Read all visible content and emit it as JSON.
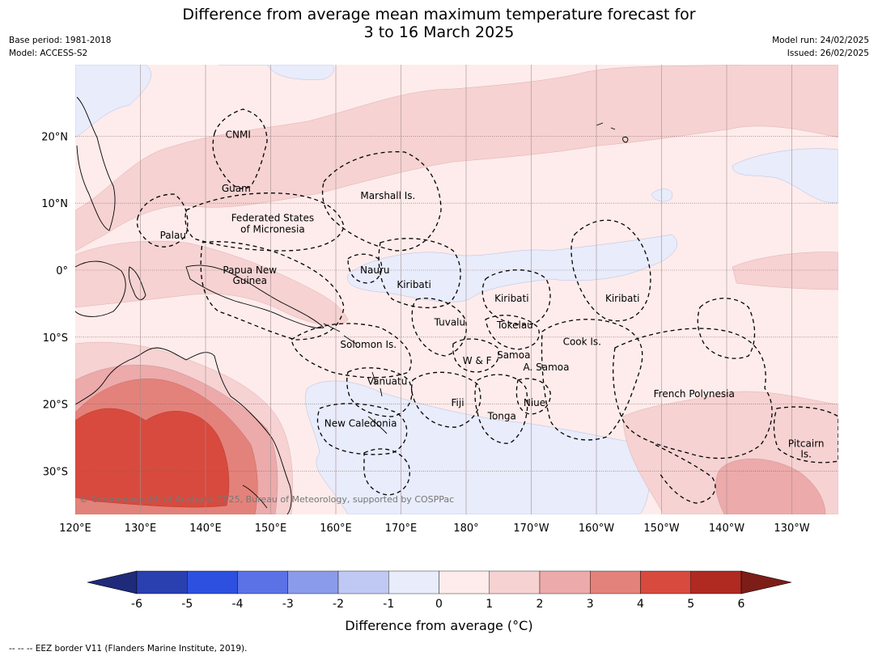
{
  "title_line1": "Difference from average mean maximum temperature forecast for",
  "title_line2": "3 to 16 March 2025",
  "base_period": "Base period: 1981-2018",
  "model": "Model: ACCESS-S2",
  "model_run": "Model run: 24/02/2025",
  "issued": "Issued: 26/02/2025",
  "copyright": "© Commonwealth of Australia 2025, Bureau of Meteorology, supported by COSPPac",
  "footnote": "--  --  -- EEZ border V11 (Flanders Marine Institute, 2019).",
  "colorbar": {
    "title": "Difference from average (°C)",
    "ticks": [
      "-6",
      "-5",
      "-4",
      "-3",
      "-2",
      "-1",
      "0",
      "1",
      "2",
      "3",
      "4",
      "5",
      "6"
    ],
    "colors": [
      "#1f2a7a",
      "#2a3fb0",
      "#2e50e0",
      "#5a72e6",
      "#8a9bec",
      "#c0c8f4",
      "#e8ecfb",
      "#fdeceb",
      "#f6d2d2",
      "#ecaaaa",
      "#e3827a",
      "#d84a3e",
      "#b02a22",
      "#7d1d18"
    ]
  },
  "axes": {
    "lon": [
      "120°E",
      "130°E",
      "140°E",
      "150°E",
      "160°E",
      "170°E",
      "180°",
      "170°W",
      "160°W",
      "150°W",
      "140°W",
      "130°W"
    ],
    "lat": [
      "20°N",
      "10°N",
      "0°",
      "10°S",
      "20°S",
      "30°S"
    ]
  },
  "places": [
    {
      "name": "CNMI",
      "lon": 145.0,
      "lat": 20.2
    },
    {
      "name": "Guam",
      "lon": 144.7,
      "lat": 12.2
    },
    {
      "name": "Marshall Is.",
      "lon": 168.0,
      "lat": 11.1
    },
    {
      "name": "Federated States",
      "lon": 150.3,
      "lat": 7.8
    },
    {
      "name": "of Micronesia",
      "lon": 150.3,
      "lat": 6.1
    },
    {
      "name": "Palau",
      "lon": 135.0,
      "lat": 5.2
    },
    {
      "name": "Papua New",
      "lon": 146.8,
      "lat": 0.0
    },
    {
      "name": "Guinea",
      "lon": 146.8,
      "lat": -1.6
    },
    {
      "name": "Nauru",
      "lon": 166.0,
      "lat": 0.0
    },
    {
      "name": "Kiribati",
      "lon": 172.0,
      "lat": -2.2
    },
    {
      "name": "Kiribati",
      "lon": 187.0,
      "lat": -4.2
    },
    {
      "name": "Kiribati",
      "lon": 204.0,
      "lat": -4.2
    },
    {
      "name": "Tuvalu",
      "lon": 177.5,
      "lat": -7.8
    },
    {
      "name": "Tokelau",
      "lon": 187.5,
      "lat": -8.2
    },
    {
      "name": "Cook Is.",
      "lon": 197.8,
      "lat": -10.7
    },
    {
      "name": "Solomon Is.",
      "lon": 165.0,
      "lat": -11.1
    },
    {
      "name": "Samoa",
      "lon": 187.3,
      "lat": -12.7
    },
    {
      "name": "W & F",
      "lon": 181.7,
      "lat": -13.5
    },
    {
      "name": "A. Samoa",
      "lon": 192.3,
      "lat": -14.5
    },
    {
      "name": "Vanuatu",
      "lon": 167.9,
      "lat": -16.6
    },
    {
      "name": "French Polynesia",
      "lon": 215.0,
      "lat": -18.5
    },
    {
      "name": "Fiji",
      "lon": 178.7,
      "lat": -19.8
    },
    {
      "name": "Niue",
      "lon": 190.5,
      "lat": -19.8
    },
    {
      "name": "Tonga",
      "lon": 185.5,
      "lat": -21.8
    },
    {
      "name": "New Caledonia",
      "lon": 163.8,
      "lat": -22.9
    },
    {
      "name": "Pitcairn",
      "lon": 232.2,
      "lat": -25.9
    },
    {
      "name": "Is.",
      "lon": 232.2,
      "lat": -27.5
    }
  ]
}
